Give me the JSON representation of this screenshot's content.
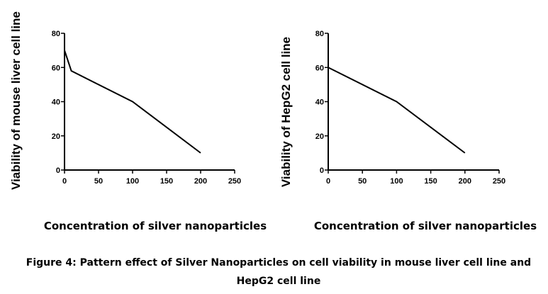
{
  "chart_data": [
    {
      "type": "line",
      "x": [
        0,
        10,
        100,
        120,
        200
      ],
      "values": [
        70,
        58,
        40,
        34,
        10
      ],
      "xlabel": "Concentration of silver nanoparticles",
      "ylabel": "Viability of mouse liver cell line",
      "xlim": [
        0,
        250
      ],
      "ylim": [
        0,
        80
      ],
      "xticks": [
        "0",
        "50",
        "100",
        "150",
        "200",
        "250"
      ],
      "yticks": [
        "0",
        "20",
        "40",
        "60",
        "80"
      ],
      "grid": false
    },
    {
      "type": "line",
      "x": [
        0,
        100,
        200
      ],
      "values": [
        60,
        40,
        10
      ],
      "xlabel": "Concentration of silver nanoparticles",
      "ylabel": "Viability of HepG2 cell line",
      "xlim": [
        0,
        250
      ],
      "ylim": [
        0,
        80
      ],
      "xticks": [
        "0",
        "50",
        "100",
        "150",
        "200",
        "250"
      ],
      "yticks": [
        "0",
        "20",
        "40",
        "60",
        "80"
      ],
      "grid": false
    }
  ],
  "caption": {
    "line1": "Figure 4: Pattern effect of Silver Nanoparticles on cell viability in mouse liver cell line and",
    "line2": "HepG2 cell line"
  }
}
